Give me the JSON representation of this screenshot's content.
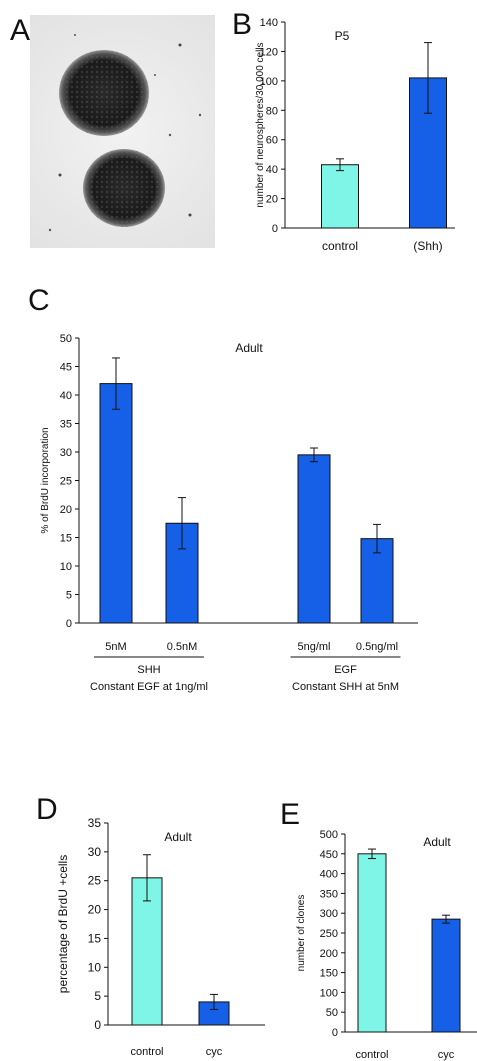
{
  "panels": {
    "A": "A",
    "B": "B",
    "C": "C",
    "D": "D",
    "E": "E"
  },
  "colors": {
    "control": "#7ff5e8",
    "treated": "#1560e6",
    "axis": "#111111"
  },
  "chart_data": [
    {
      "id": "B",
      "type": "bar",
      "title": "P5",
      "ylabel": "number of neurospheres/30,000 cells",
      "categories": [
        "control",
        "(Shh)"
      ],
      "values": [
        43,
        102
      ],
      "errors": [
        4,
        24
      ],
      "ylim": [
        0,
        140
      ],
      "yticks": [
        0,
        20,
        40,
        60,
        80,
        100,
        120,
        140
      ],
      "bar_colors": [
        "#7ff5e8",
        "#1560e6"
      ]
    },
    {
      "id": "C",
      "type": "bar",
      "title": "Adult",
      "ylabel": "% of BrdU incorporation",
      "categories": [
        "5nM",
        "0.5nM",
        "5ng/ml",
        "0.5ng/ml"
      ],
      "values": [
        42,
        17.5,
        29.5,
        14.8
      ],
      "errors": [
        4.5,
        4.5,
        1.2,
        2.5
      ],
      "ylim": [
        0,
        50
      ],
      "yticks": [
        0,
        5,
        10,
        15,
        20,
        25,
        30,
        35,
        40,
        45,
        50
      ],
      "bar_colors": [
        "#1560e6",
        "#1560e6",
        "#1560e6",
        "#1560e6"
      ],
      "groups": [
        {
          "label": "SHH",
          "sublabel": "Constant EGF at 1ng/ml"
        },
        {
          "label": "EGF",
          "sublabel": "Constant SHH at 5nM"
        }
      ]
    },
    {
      "id": "D",
      "type": "bar",
      "title": "Adult",
      "ylabel": "percentage of BrdU +cells",
      "categories": [
        "control",
        "cyc"
      ],
      "values": [
        25.5,
        4
      ],
      "errors": [
        4,
        1.3
      ],
      "ylim": [
        0,
        35
      ],
      "yticks": [
        0,
        5,
        10,
        15,
        20,
        25,
        30,
        35
      ],
      "bar_colors": [
        "#7ff5e8",
        "#1560e6"
      ]
    },
    {
      "id": "E",
      "type": "bar",
      "title": "Adult",
      "ylabel": "number of clones",
      "categories": [
        "control",
        "cyc"
      ],
      "values": [
        450,
        285
      ],
      "errors": [
        12,
        10
      ],
      "ylim": [
        0,
        500
      ],
      "yticks": [
        0,
        50,
        100,
        150,
        200,
        250,
        300,
        350,
        400,
        450,
        500
      ],
      "bar_colors": [
        "#7ff5e8",
        "#1560e6"
      ]
    }
  ]
}
